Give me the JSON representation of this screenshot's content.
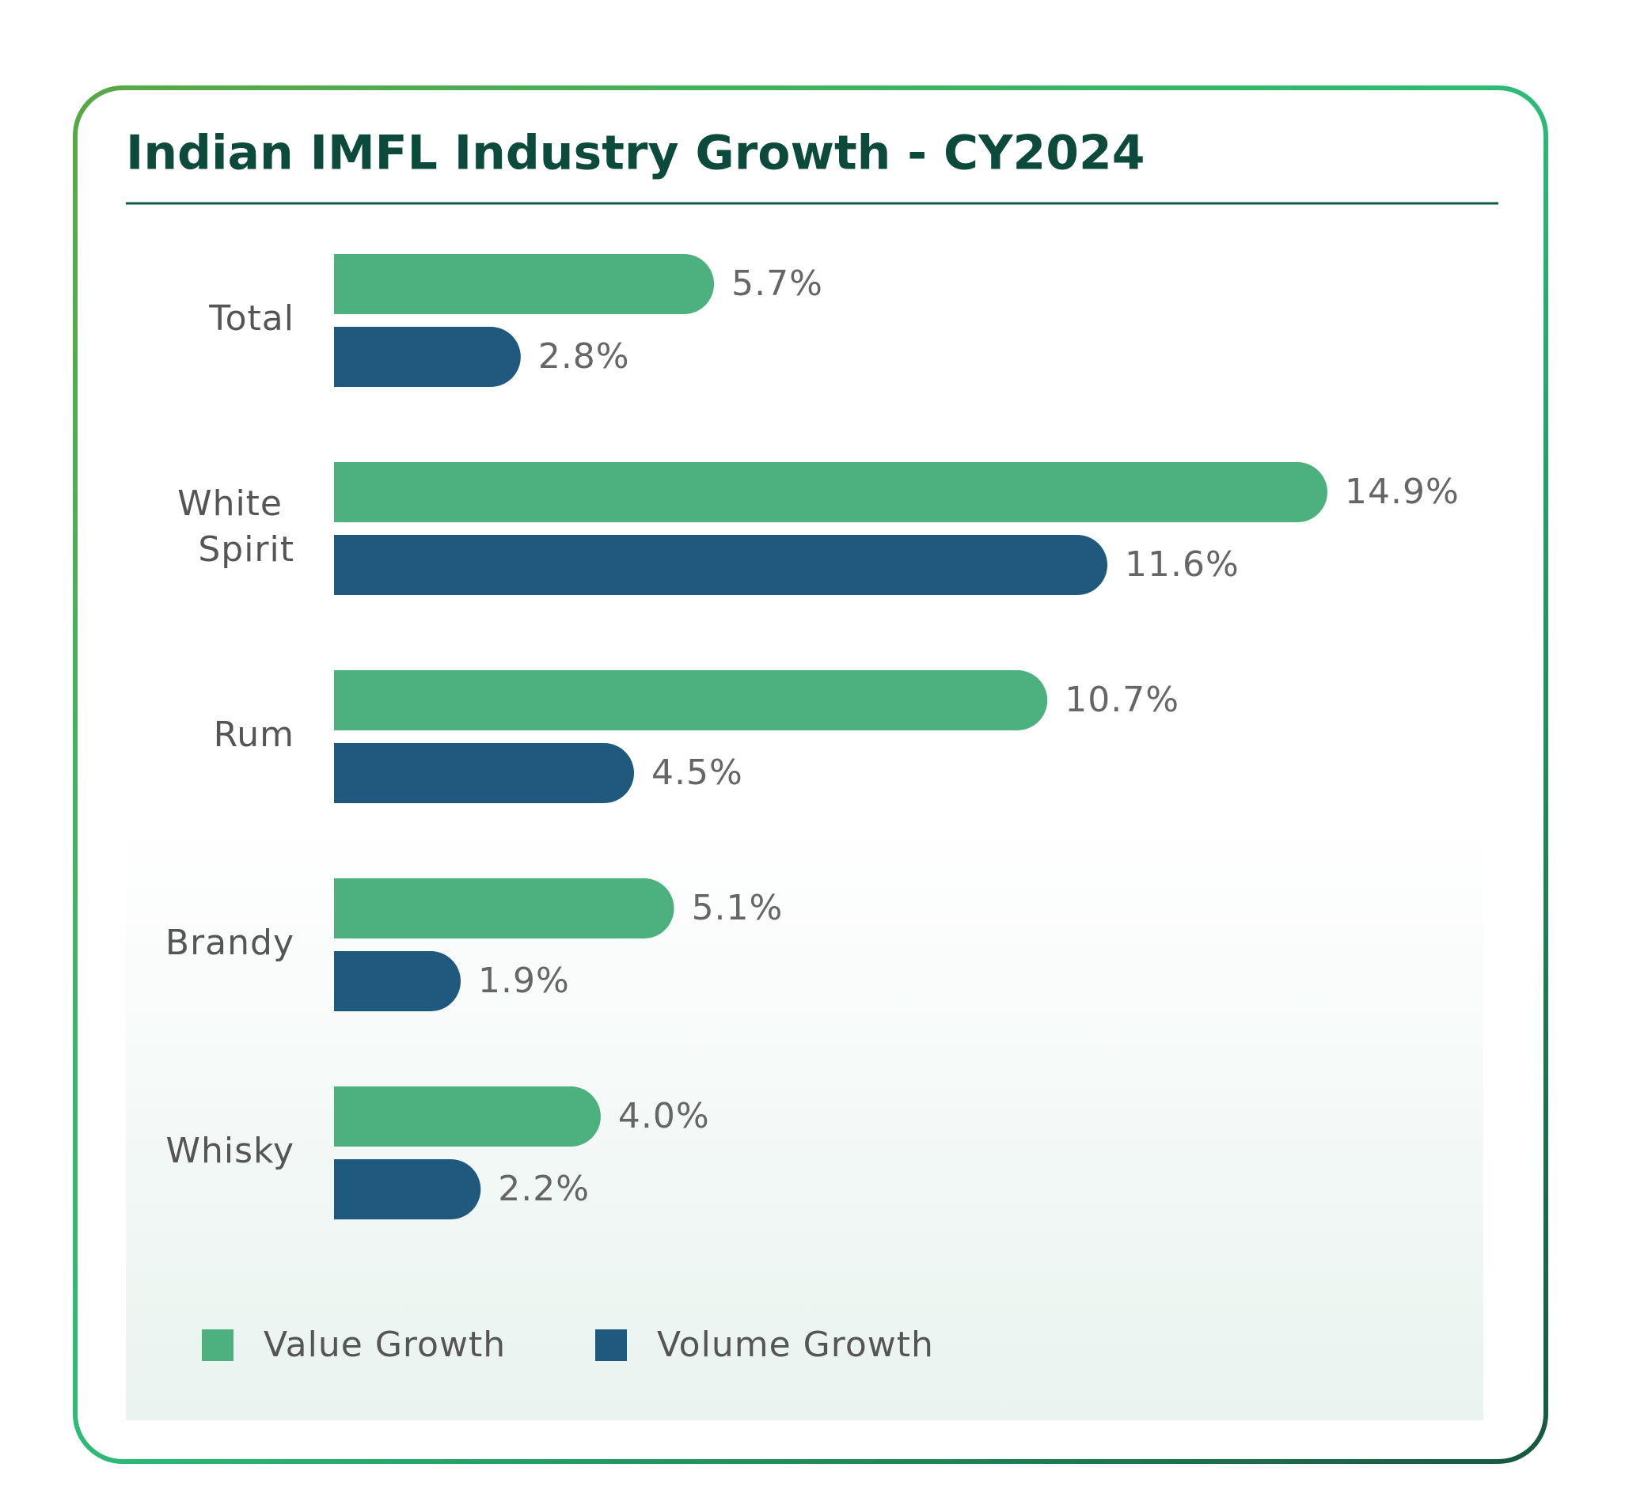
{
  "chart_data": {
    "type": "bar",
    "orientation": "horizontal",
    "title": "Indian IMFL Industry Growth - CY2024",
    "categories": [
      "Total",
      "White Spirit",
      "Rum",
      "Brandy",
      "Whisky"
    ],
    "series": [
      {
        "name": "Value Growth",
        "color": "#4cb07f",
        "values": [
          5.7,
          14.9,
          10.7,
          5.1,
          4.0
        ],
        "value_labels": [
          "5.7%",
          "14.9%",
          "10.7%",
          "5.1%",
          "4.0%"
        ]
      },
      {
        "name": "Volume Growth",
        "color": "#1f5a7e",
        "values": [
          2.8,
          11.6,
          4.5,
          1.9,
          2.2
        ],
        "value_labels": [
          "2.8%",
          "11.6%",
          "4.5%",
          "1.9%",
          "2.2%"
        ]
      }
    ],
    "legend": "bottom-left"
  }
}
